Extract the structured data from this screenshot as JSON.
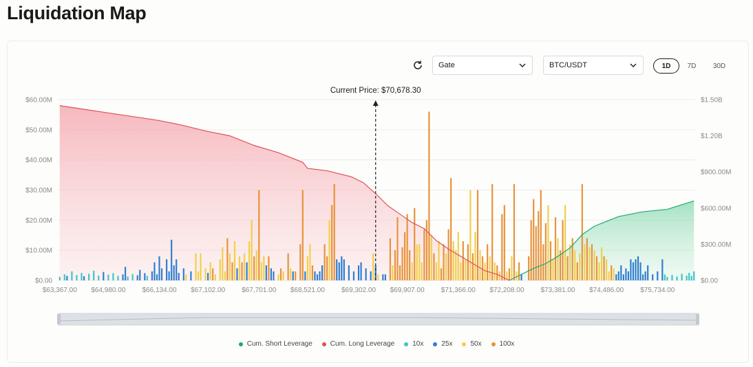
{
  "page_title": "Liquidation Map",
  "controls": {
    "exchange": "Gate",
    "pair": "BTC/USDT",
    "timeframes": [
      "1D",
      "7D",
      "30D"
    ],
    "active_timeframe": "1D"
  },
  "colors": {
    "short": "#1fa971",
    "long": "#e0505a",
    "x10": "#3cc6c6",
    "x25": "#2f7dd1",
    "x50": "#f2cf4a",
    "x100": "#e8923a"
  },
  "chart_data": {
    "type": "bar",
    "title": "Liquidation Map",
    "current_price_label": "Current Price: $70,678.30",
    "current_price_index": 130,
    "x_tick_labels": [
      "$63,367.00",
      "$64,980.00",
      "$66,134.00",
      "$67,102.00",
      "$67,701.00",
      "$68,521.00",
      "$69,302.00",
      "$69,907.00",
      "$71,366.00",
      "$72,208.00",
      "$73,381.00",
      "$74,486.00",
      "$75,734.00"
    ],
    "x_tick_indices": [
      0,
      20,
      41,
      61,
      82,
      102,
      123,
      143,
      164,
      184,
      205,
      225,
      246
    ],
    "y_left_ticks": [
      "$0.00",
      "$10.00M",
      "$20.00M",
      "$30.00M",
      "$40.00M",
      "$50.00M",
      "$60.00M"
    ],
    "y_right_ticks": [
      "$0.00",
      "$300.00M",
      "$600.00M",
      "$900.00M",
      "$1.20B",
      "$1.50B"
    ],
    "ylim_left": [
      0,
      60
    ],
    "ylim_right": [
      0,
      1.5
    ],
    "grid": true,
    "legend_position": "bottom",
    "legend": [
      "Cum. Short Leverage",
      "Cum. Long Leverage",
      "10x",
      "25x",
      "50x",
      "100x"
    ],
    "bar_count": 262,
    "bars": [
      {
        "i": 0,
        "v": 1.2,
        "s": "x10"
      },
      {
        "i": 2,
        "v": 2.0,
        "s": "x10"
      },
      {
        "i": 3,
        "v": 1.5,
        "s": "x25"
      },
      {
        "i": 5,
        "v": 3.0,
        "s": "x10"
      },
      {
        "i": 7,
        "v": 1.8,
        "s": "x10"
      },
      {
        "i": 9,
        "v": 2.5,
        "s": "x10"
      },
      {
        "i": 10,
        "v": 1.4,
        "s": "x25"
      },
      {
        "i": 12,
        "v": 2.2,
        "s": "x10"
      },
      {
        "i": 14,
        "v": 3.2,
        "s": "x10"
      },
      {
        "i": 16,
        "v": 1.6,
        "s": "x10"
      },
      {
        "i": 18,
        "v": 2.8,
        "s": "x25"
      },
      {
        "i": 20,
        "v": 1.9,
        "s": "x10"
      },
      {
        "i": 22,
        "v": 2.4,
        "s": "x10"
      },
      {
        "i": 24,
        "v": 1.5,
        "s": "x10"
      },
      {
        "i": 26,
        "v": 2.0,
        "s": "x25"
      },
      {
        "i": 27,
        "v": 4.5,
        "s": "x25"
      },
      {
        "i": 28,
        "v": 1.3,
        "s": "x10"
      },
      {
        "i": 30,
        "v": 2.1,
        "s": "x10"
      },
      {
        "i": 32,
        "v": 1.7,
        "s": "x25"
      },
      {
        "i": 33,
        "v": 3.5,
        "s": "x25"
      },
      {
        "i": 35,
        "v": 2.4,
        "s": "x25"
      },
      {
        "i": 36,
        "v": 1.5,
        "s": "x10"
      },
      {
        "i": 38,
        "v": 3.0,
        "s": "x25"
      },
      {
        "i": 39,
        "v": 6.0,
        "s": "x25"
      },
      {
        "i": 40,
        "v": 2.0,
        "s": "x25"
      },
      {
        "i": 41,
        "v": 8.0,
        "s": "x25"
      },
      {
        "i": 42,
        "v": 4.0,
        "s": "x25"
      },
      {
        "i": 44,
        "v": 7.0,
        "s": "x25"
      },
      {
        "i": 45,
        "v": 3.0,
        "s": "x25"
      },
      {
        "i": 46,
        "v": 13.5,
        "s": "x25"
      },
      {
        "i": 47,
        "v": 5.0,
        "s": "x25"
      },
      {
        "i": 48,
        "v": 7.0,
        "s": "x25"
      },
      {
        "i": 49,
        "v": 2.5,
        "s": "x25"
      },
      {
        "i": 51,
        "v": 4.0,
        "s": "x25"
      },
      {
        "i": 52,
        "v": 2.0,
        "s": "x50"
      },
      {
        "i": 54,
        "v": 3.0,
        "s": "x25"
      },
      {
        "i": 56,
        "v": 9.0,
        "s": "x50"
      },
      {
        "i": 57,
        "v": 3.0,
        "s": "x50"
      },
      {
        "i": 58,
        "v": 9.0,
        "s": "x50"
      },
      {
        "i": 60,
        "v": 4.0,
        "s": "x50"
      },
      {
        "i": 61,
        "v": 2.5,
        "s": "x25"
      },
      {
        "i": 62,
        "v": 6.0,
        "s": "x50"
      },
      {
        "i": 63,
        "v": 4.0,
        "s": "x100"
      },
      {
        "i": 64,
        "v": 2.0,
        "s": "x50"
      },
      {
        "i": 66,
        "v": 7.0,
        "s": "x50"
      },
      {
        "i": 67,
        "v": 11.0,
        "s": "x50"
      },
      {
        "i": 68,
        "v": 3.0,
        "s": "x50"
      },
      {
        "i": 69,
        "v": 14.0,
        "s": "x100"
      },
      {
        "i": 70,
        "v": 9.0,
        "s": "x50"
      },
      {
        "i": 71,
        "v": 6.0,
        "s": "x100"
      },
      {
        "i": 72,
        "v": 13.0,
        "s": "x50"
      },
      {
        "i": 73,
        "v": 4.0,
        "s": "x25"
      },
      {
        "i": 74,
        "v": 8.0,
        "s": "x50"
      },
      {
        "i": 75,
        "v": 6.0,
        "s": "x100"
      },
      {
        "i": 76,
        "v": 9.0,
        "s": "x50"
      },
      {
        "i": 77,
        "v": 6.0,
        "s": "x25"
      },
      {
        "i": 78,
        "v": 13.0,
        "s": "x50"
      },
      {
        "i": 79,
        "v": 20.0,
        "s": "x50"
      },
      {
        "i": 80,
        "v": 8.0,
        "s": "x100"
      },
      {
        "i": 81,
        "v": 10.0,
        "s": "x50"
      },
      {
        "i": 82,
        "v": 30.0,
        "s": "x100"
      },
      {
        "i": 83,
        "v": 6.0,
        "s": "x50"
      },
      {
        "i": 84,
        "v": 8.0,
        "s": "x50"
      },
      {
        "i": 85,
        "v": 5.0,
        "s": "x25"
      },
      {
        "i": 86,
        "v": 8.0,
        "s": "x100"
      },
      {
        "i": 87,
        "v": 4.0,
        "s": "x25"
      },
      {
        "i": 88,
        "v": 3.0,
        "s": "x25"
      },
      {
        "i": 90,
        "v": 2.0,
        "s": "x50"
      },
      {
        "i": 91,
        "v": 4.0,
        "s": "x100"
      },
      {
        "i": 92,
        "v": 3.0,
        "s": "x50"
      },
      {
        "i": 94,
        "v": 9.0,
        "s": "x100"
      },
      {
        "i": 95,
        "v": 4.0,
        "s": "x50"
      },
      {
        "i": 96,
        "v": 3.0,
        "s": "x25"
      },
      {
        "i": 97,
        "v": 3.0,
        "s": "x100"
      },
      {
        "i": 99,
        "v": 12.0,
        "s": "x100"
      },
      {
        "i": 100,
        "v": 30.0,
        "s": "x100"
      },
      {
        "i": 101,
        "v": 3.0,
        "s": "x25"
      },
      {
        "i": 102,
        "v": 8.0,
        "s": "x50"
      },
      {
        "i": 103,
        "v": 12.0,
        "s": "x50"
      },
      {
        "i": 104,
        "v": 5.0,
        "s": "x100"
      },
      {
        "i": 105,
        "v": 3.0,
        "s": "x25"
      },
      {
        "i": 106,
        "v": 2.0,
        "s": "x25"
      },
      {
        "i": 107,
        "v": 3.0,
        "s": "x25"
      },
      {
        "i": 108,
        "v": 5.0,
        "s": "x25"
      },
      {
        "i": 109,
        "v": 12.0,
        "s": "x100"
      },
      {
        "i": 110,
        "v": 8.0,
        "s": "x100"
      },
      {
        "i": 111,
        "v": 20.0,
        "s": "x50"
      },
      {
        "i": 112,
        "v": 25.0,
        "s": "x100"
      },
      {
        "i": 113,
        "v": 32.0,
        "s": "x100"
      },
      {
        "i": 114,
        "v": 7.0,
        "s": "x25"
      },
      {
        "i": 115,
        "v": 6.0,
        "s": "x25"
      },
      {
        "i": 116,
        "v": 8.0,
        "s": "x25"
      },
      {
        "i": 117,
        "v": 7.0,
        "s": "x25"
      },
      {
        "i": 119,
        "v": 5.0,
        "s": "x25"
      },
      {
        "i": 121,
        "v": 3.0,
        "s": "x25"
      },
      {
        "i": 123,
        "v": 5.0,
        "s": "x25"
      },
      {
        "i": 124,
        "v": 6.0,
        "s": "x25"
      },
      {
        "i": 126,
        "v": 4.0,
        "s": "x25"
      },
      {
        "i": 128,
        "v": 3.0,
        "s": "x25"
      },
      {
        "i": 129,
        "v": 9.0,
        "s": "x50"
      },
      {
        "i": 130,
        "v": 5.0,
        "s": "x25"
      },
      {
        "i": 131,
        "v": 2.0,
        "s": "x50"
      },
      {
        "i": 133,
        "v": 2.0,
        "s": "x25"
      },
      {
        "i": 134,
        "v": 2.0,
        "s": "x25"
      },
      {
        "i": 136,
        "v": 14.0,
        "s": "x100"
      },
      {
        "i": 137,
        "v": 5.0,
        "s": "x50"
      },
      {
        "i": 138,
        "v": 10.0,
        "s": "x100"
      },
      {
        "i": 139,
        "v": 21.0,
        "s": "x100"
      },
      {
        "i": 140,
        "v": 5.0,
        "s": "x100"
      },
      {
        "i": 141,
        "v": 11.0,
        "s": "x100"
      },
      {
        "i": 142,
        "v": 16.0,
        "s": "x100"
      },
      {
        "i": 143,
        "v": 22.0,
        "s": "x100"
      },
      {
        "i": 144,
        "v": 10.0,
        "s": "x100"
      },
      {
        "i": 145,
        "v": 6.0,
        "s": "x50"
      },
      {
        "i": 146,
        "v": 24.0,
        "s": "x100"
      },
      {
        "i": 147,
        "v": 12.0,
        "s": "x50"
      },
      {
        "i": 148,
        "v": 12.0,
        "s": "x50"
      },
      {
        "i": 149,
        "v": 6.0,
        "s": "x50"
      },
      {
        "i": 150,
        "v": 17.0,
        "s": "x100"
      },
      {
        "i": 151,
        "v": 20.0,
        "s": "x100"
      },
      {
        "i": 152,
        "v": 56.0,
        "s": "x100"
      },
      {
        "i": 153,
        "v": 15.0,
        "s": "x50"
      },
      {
        "i": 154,
        "v": 9.0,
        "s": "x100"
      },
      {
        "i": 155,
        "v": 6.0,
        "s": "x50"
      },
      {
        "i": 156,
        "v": 13.0,
        "s": "x50"
      },
      {
        "i": 157,
        "v": 4.0,
        "s": "x100"
      },
      {
        "i": 158,
        "v": 12.0,
        "s": "x100"
      },
      {
        "i": 159,
        "v": 9.0,
        "s": "x50"
      },
      {
        "i": 160,
        "v": 17.0,
        "s": "x100"
      },
      {
        "i": 161,
        "v": 34.0,
        "s": "x100"
      },
      {
        "i": 162,
        "v": 13.0,
        "s": "x50"
      },
      {
        "i": 163,
        "v": 10.0,
        "s": "x50"
      },
      {
        "i": 164,
        "v": 16.0,
        "s": "x50"
      },
      {
        "i": 165,
        "v": 6.0,
        "s": "x50"
      },
      {
        "i": 166,
        "v": 13.0,
        "s": "x100"
      },
      {
        "i": 167,
        "v": 7.0,
        "s": "x50"
      },
      {
        "i": 168,
        "v": 12.0,
        "s": "x100"
      },
      {
        "i": 169,
        "v": 30.0,
        "s": "x50"
      },
      {
        "i": 170,
        "v": 9.0,
        "s": "x100"
      },
      {
        "i": 171,
        "v": 16.0,
        "s": "x50"
      },
      {
        "i": 172,
        "v": 30.0,
        "s": "x100"
      },
      {
        "i": 173,
        "v": 10.0,
        "s": "x50"
      },
      {
        "i": 174,
        "v": 8.0,
        "s": "x100"
      },
      {
        "i": 175,
        "v": 6.0,
        "s": "x50"
      },
      {
        "i": 176,
        "v": 12.0,
        "s": "x100"
      },
      {
        "i": 177,
        "v": 8.0,
        "s": "x50"
      },
      {
        "i": 178,
        "v": 32.0,
        "s": "x100"
      },
      {
        "i": 179,
        "v": 6.0,
        "s": "x50"
      },
      {
        "i": 180,
        "v": 5.0,
        "s": "x100"
      },
      {
        "i": 181,
        "v": 3.0,
        "s": "x50"
      },
      {
        "i": 182,
        "v": 22.0,
        "s": "x100"
      },
      {
        "i": 183,
        "v": 25.0,
        "s": "x100"
      },
      {
        "i": 184,
        "v": 3.0,
        "s": "x50"
      },
      {
        "i": 185,
        "v": 4.0,
        "s": "x100"
      },
      {
        "i": 186,
        "v": 8.0,
        "s": "x50"
      },
      {
        "i": 187,
        "v": 32.0,
        "s": "x100"
      },
      {
        "i": 188,
        "v": 3.0,
        "s": "x50"
      },
      {
        "i": 189,
        "v": 6.0,
        "s": "x100"
      },
      {
        "i": 190,
        "v": 2.0,
        "s": "x25"
      },
      {
        "i": 193,
        "v": 8.0,
        "s": "x100"
      },
      {
        "i": 194,
        "v": 20.0,
        "s": "x100"
      },
      {
        "i": 195,
        "v": 27.0,
        "s": "x100"
      },
      {
        "i": 196,
        "v": 18.0,
        "s": "x100"
      },
      {
        "i": 197,
        "v": 23.0,
        "s": "x100"
      },
      {
        "i": 198,
        "v": 30.0,
        "s": "x100"
      },
      {
        "i": 199,
        "v": 12.0,
        "s": "x100"
      },
      {
        "i": 200,
        "v": 19.0,
        "s": "x100"
      },
      {
        "i": 201,
        "v": 25.0,
        "s": "x50"
      },
      {
        "i": 202,
        "v": 13.0,
        "s": "x100"
      },
      {
        "i": 203,
        "v": 7.0,
        "s": "x50"
      },
      {
        "i": 204,
        "v": 21.0,
        "s": "x100"
      },
      {
        "i": 205,
        "v": 14.0,
        "s": "x50"
      },
      {
        "i": 206,
        "v": 10.0,
        "s": "x100"
      },
      {
        "i": 207,
        "v": 20.0,
        "s": "x100"
      },
      {
        "i": 208,
        "v": 25.0,
        "s": "x50"
      },
      {
        "i": 209,
        "v": 8.0,
        "s": "x100"
      },
      {
        "i": 210,
        "v": 12.0,
        "s": "x50"
      },
      {
        "i": 211,
        "v": 14.0,
        "s": "x100"
      },
      {
        "i": 212,
        "v": 10.0,
        "s": "x50"
      },
      {
        "i": 213,
        "v": 6.0,
        "s": "x100"
      },
      {
        "i": 214,
        "v": 9.0,
        "s": "x50"
      },
      {
        "i": 215,
        "v": 32.0,
        "s": "x100"
      },
      {
        "i": 216,
        "v": 12.0,
        "s": "x50"
      },
      {
        "i": 217,
        "v": 14.0,
        "s": "x100"
      },
      {
        "i": 218,
        "v": 11.0,
        "s": "x50"
      },
      {
        "i": 219,
        "v": 12.0,
        "s": "x100"
      },
      {
        "i": 220,
        "v": 10.0,
        "s": "x50"
      },
      {
        "i": 221,
        "v": 8.0,
        "s": "x100"
      },
      {
        "i": 222,
        "v": 6.0,
        "s": "x50"
      },
      {
        "i": 223,
        "v": 11.0,
        "s": "x50"
      },
      {
        "i": 224,
        "v": 8.0,
        "s": "x100"
      },
      {
        "i": 225,
        "v": 7.0,
        "s": "x50"
      },
      {
        "i": 226,
        "v": 3.0,
        "s": "x50"
      },
      {
        "i": 227,
        "v": 5.0,
        "s": "x100"
      },
      {
        "i": 228,
        "v": 4.0,
        "s": "x50"
      },
      {
        "i": 229,
        "v": 2.0,
        "s": "x25"
      },
      {
        "i": 230,
        "v": 3.0,
        "s": "x25"
      },
      {
        "i": 231,
        "v": 5.0,
        "s": "x25"
      },
      {
        "i": 232,
        "v": 2.0,
        "s": "x25"
      },
      {
        "i": 233,
        "v": 4.0,
        "s": "x25"
      },
      {
        "i": 234,
        "v": 3.0,
        "s": "x25"
      },
      {
        "i": 235,
        "v": 7.0,
        "s": "x25"
      },
      {
        "i": 236,
        "v": 6.0,
        "s": "x25"
      },
      {
        "i": 237,
        "v": 7.0,
        "s": "x25"
      },
      {
        "i": 238,
        "v": 8.0,
        "s": "x25"
      },
      {
        "i": 239,
        "v": 6.0,
        "s": "x25"
      },
      {
        "i": 240,
        "v": 2.0,
        "s": "x25"
      },
      {
        "i": 241,
        "v": 3.0,
        "s": "x25"
      },
      {
        "i": 242,
        "v": 5.0,
        "s": "x25"
      },
      {
        "i": 244,
        "v": 2.0,
        "s": "x25"
      },
      {
        "i": 246,
        "v": 3.0,
        "s": "x25"
      },
      {
        "i": 248,
        "v": 7.0,
        "s": "x25"
      },
      {
        "i": 249,
        "v": 2.0,
        "s": "x10"
      },
      {
        "i": 250,
        "v": 1.2,
        "s": "x10"
      },
      {
        "i": 252,
        "v": 1.8,
        "s": "x10"
      },
      {
        "i": 254,
        "v": 1.3,
        "s": "x10"
      },
      {
        "i": 256,
        "v": 2.2,
        "s": "x10"
      },
      {
        "i": 258,
        "v": 1.6,
        "s": "x10"
      },
      {
        "i": 259,
        "v": 2.5,
        "s": "x10"
      },
      {
        "i": 260,
        "v": 1.5,
        "s": "x10"
      },
      {
        "i": 261,
        "v": 3.0,
        "s": "x10"
      }
    ],
    "cum_long": [
      [
        0,
        1.45
      ],
      [
        10,
        1.42
      ],
      [
        20,
        1.39
      ],
      [
        30,
        1.36
      ],
      [
        40,
        1.33
      ],
      [
        50,
        1.29
      ],
      [
        60,
        1.24
      ],
      [
        70,
        1.2
      ],
      [
        80,
        1.12
      ],
      [
        90,
        1.06
      ],
      [
        100,
        0.98
      ],
      [
        102,
        0.93
      ],
      [
        110,
        0.91
      ],
      [
        120,
        0.86
      ],
      [
        125,
        0.81
      ],
      [
        130,
        0.72
      ],
      [
        135,
        0.62
      ],
      [
        140,
        0.55
      ],
      [
        145,
        0.48
      ],
      [
        150,
        0.43
      ],
      [
        155,
        0.33
      ],
      [
        160,
        0.26
      ],
      [
        165,
        0.2
      ],
      [
        170,
        0.14
      ],
      [
        175,
        0.08
      ],
      [
        180,
        0.05
      ],
      [
        185,
        0.0
      ]
    ],
    "cum_short": [
      [
        185,
        0.0
      ],
      [
        190,
        0.05
      ],
      [
        195,
        0.1
      ],
      [
        200,
        0.14
      ],
      [
        205,
        0.2
      ],
      [
        210,
        0.27
      ],
      [
        215,
        0.38
      ],
      [
        220,
        0.45
      ],
      [
        225,
        0.49
      ],
      [
        230,
        0.53
      ],
      [
        240,
        0.57
      ],
      [
        250,
        0.59
      ],
      [
        262,
        0.66
      ]
    ]
  }
}
